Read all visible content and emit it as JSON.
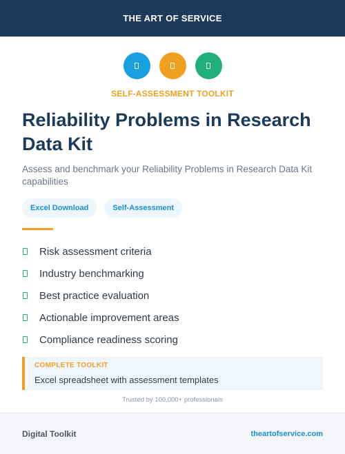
{
  "header": {
    "title": "THE ART OF SERVICE"
  },
  "icons": [
    {
      "name": "document-icon",
      "color": "#1a9fe0"
    },
    {
      "name": "document-icon",
      "color": "#f0a020"
    },
    {
      "name": "document-icon",
      "color": "#20b07a"
    }
  ],
  "kicker": "SELF-ASSESSMENT TOOLKIT",
  "title": "Reliability Problems in Research Data Kit",
  "subtitle": "Assess and benchmark your Reliability Problems in Research Data Kit capabilities",
  "tags": [
    "Excel Download",
    "Self-Assessment"
  ],
  "features": [
    "Risk assessment criteria",
    "Industry benchmarking",
    "Best practice evaluation",
    "Actionable improvement areas",
    "Compliance readiness scoring"
  ],
  "callout": {
    "kicker": "COMPLETE TOOLKIT",
    "text": "Excel spreadsheet with assessment templates"
  },
  "trust": "Trusted by 100,000+ professionals",
  "footer": {
    "left": "Digital Toolkit",
    "right": "theartofservice.com"
  },
  "colors": {
    "navy": "#1c3a5a",
    "accent_orange": "#f0a020",
    "accent_blue": "#1a8fd6",
    "accent_green": "#20b07a"
  }
}
